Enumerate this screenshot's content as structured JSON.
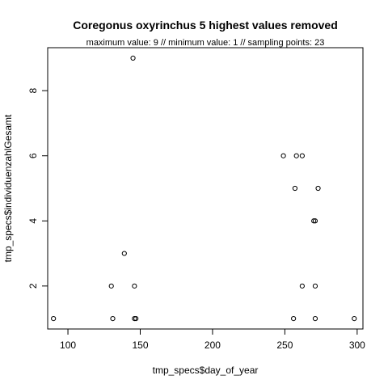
{
  "chart_data": {
    "type": "scatter",
    "title": "Coregonus oxyrinchus  5 highest values removed",
    "subtitle": "maximum value: 9  //  minimum value: 1  // sampling points: 23",
    "xlabel": "tmp_specs$day_of_year",
    "ylabel": "tmp_specs$individuenzahlGesamt",
    "xlim": [
      86,
      304
    ],
    "ylim": [
      0.68,
      9.32
    ],
    "x_ticks": [
      100,
      150,
      200,
      250,
      300
    ],
    "y_ticks": [
      2,
      4,
      6,
      8
    ],
    "x_tick_labels": [
      "100",
      "150",
      "200",
      "250",
      "300"
    ],
    "y_tick_labels": [
      "2",
      "4",
      "6",
      "8"
    ],
    "grid": false,
    "legend": "none",
    "marker": "open-circle",
    "points": [
      {
        "x": 90,
        "y": 1
      },
      {
        "x": 131,
        "y": 1
      },
      {
        "x": 146,
        "y": 1
      },
      {
        "x": 147,
        "y": 1
      },
      {
        "x": 256,
        "y": 1
      },
      {
        "x": 271,
        "y": 1
      },
      {
        "x": 298,
        "y": 1
      },
      {
        "x": 130,
        "y": 2
      },
      {
        "x": 146,
        "y": 2
      },
      {
        "x": 262,
        "y": 2
      },
      {
        "x": 271,
        "y": 2
      },
      {
        "x": 139,
        "y": 3
      },
      {
        "x": 270,
        "y": 4
      },
      {
        "x": 271,
        "y": 4
      },
      {
        "x": 257,
        "y": 5
      },
      {
        "x": 273,
        "y": 5
      },
      {
        "x": 249,
        "y": 6
      },
      {
        "x": 258,
        "y": 6
      },
      {
        "x": 262,
        "y": 6
      },
      {
        "x": 145,
        "y": 9
      }
    ]
  }
}
